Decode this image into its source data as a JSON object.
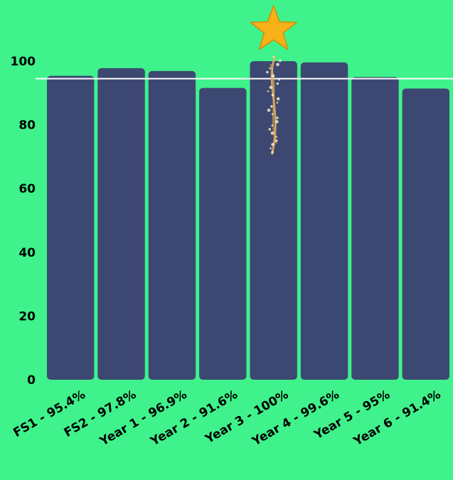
{
  "chart_data": {
    "type": "bar",
    "categories": [
      "FS1 - 95.4%",
      "FS2 - 97.8%",
      "Year 1 - 96.9%",
      "Year 2 - 91.6%",
      "Year 3 - 100%",
      "Year 4 - 99.6%",
      "Year 5 - 95%",
      "Year 6 - 91.4%"
    ],
    "values": [
      95.4,
      97.8,
      96.9,
      91.6,
      100,
      99.6,
      95,
      91.4
    ],
    "ylim": [
      0,
      100
    ],
    "yticks": [
      0,
      20,
      40,
      60,
      80,
      100
    ],
    "reference_line": 94.5,
    "highlight_category": "Year 3 - 100%",
    "highlight_icon": "star-icon",
    "grid": false,
    "colors": {
      "background": "#3ff28b",
      "bar": "#3d4872",
      "reference_line": "#ffffff",
      "star": "#f7b21a",
      "sparkle": "#e8b25a"
    }
  }
}
